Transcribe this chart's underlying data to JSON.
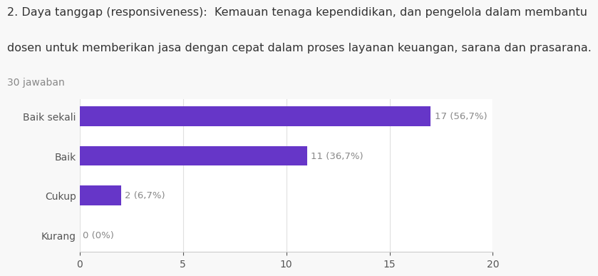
{
  "title_line1": "2. Daya tanggap (responsiveness):  Kemauan tenaga kependidikan, dan pengelola dalam membantu",
  "title_line2": "dosen untuk memberikan jasa dengan cepat dalam proses layanan keuangan, sarana dan prasarana.",
  "subtitle": "30 jawaban",
  "categories": [
    "Kurang",
    "Cukup",
    "Baik",
    "Baik sekali"
  ],
  "values": [
    0,
    2,
    11,
    17
  ],
  "labels": [
    "0 (0%)",
    "2 (6,7%)",
    "11 (36,7%)",
    "17 (56,7%)"
  ],
  "bar_color": "#6636c8",
  "background_color": "#f8f8f8",
  "plot_bg_color": "#ffffff",
  "xlim": [
    0,
    20
  ],
  "xticks": [
    0,
    5,
    10,
    15,
    20
  ],
  "title_fontsize": 11.5,
  "subtitle_fontsize": 10,
  "label_fontsize": 9.5,
  "tick_fontsize": 10,
  "bar_height": 0.5
}
